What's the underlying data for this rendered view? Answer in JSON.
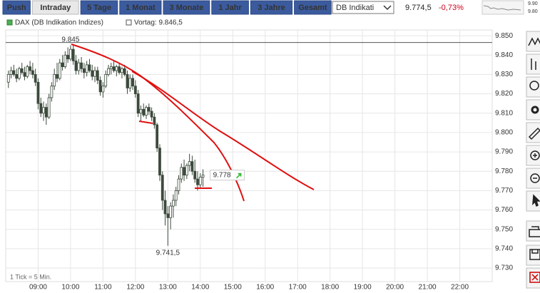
{
  "toolbar": {
    "tabs": [
      "Push",
      "Intraday",
      "5 Tage",
      "1 Monat",
      "3 Monate",
      "1 Jahr",
      "3 Jahre",
      "Gesamt"
    ],
    "active_tab": 1,
    "instrument_select": "DB Indikati",
    "price": "9.774,5",
    "change": "-0,73%",
    "mini_labels": [
      "9.90",
      "9.80"
    ]
  },
  "chart_data": {
    "type": "candlestick",
    "series_name": "DAX (DB Indikation Indizes)",
    "prev_close": {
      "value": 9846.5,
      "label": "Vortag: 9.846,5"
    },
    "high_label": "9.845",
    "low_label": "9.741,5",
    "last_label": "9.778",
    "footnote": "1 Tick = 5 Min.",
    "up_color": "#ffffff",
    "down_color": "#3c4a3c",
    "edge_color": "#3c4a3c",
    "x": [
      485,
      490,
      495,
      500,
      505,
      510,
      515,
      520,
      525,
      530,
      535,
      540,
      545,
      550,
      555,
      560,
      565,
      570,
      575,
      580,
      585,
      590,
      595,
      600,
      605,
      610,
      615,
      620,
      625,
      630,
      635,
      640,
      645,
      650,
      655,
      660,
      665,
      670,
      675,
      680,
      685,
      690,
      695,
      700,
      705,
      710,
      715,
      720,
      725,
      730,
      735,
      740,
      745,
      750,
      755,
      760,
      765,
      770,
      775,
      780,
      785,
      790,
      795,
      800,
      805,
      810,
      815,
      820,
      825,
      830,
      835,
      840,
      845
    ],
    "open": [
      9826,
      9830,
      9832,
      9830,
      9828,
      9833,
      9831,
      9829,
      9834,
      9832,
      9830,
      9826,
      9815,
      9810,
      9813,
      9808,
      9818,
      9824,
      9830,
      9828,
      9836,
      9834,
      9840,
      9838,
      9843,
      9837,
      9832,
      9836,
      9833,
      9831,
      9835,
      9832,
      9829,
      9832,
      9827,
      9821,
      9824,
      9830,
      9833,
      9834,
      9832,
      9834,
      9831,
      9833,
      9830,
      9823,
      9828,
      9824,
      9820,
      9810,
      9812,
      9809,
      9813,
      9811,
      9808,
      9804,
      9792,
      9778,
      9765,
      9758,
      9756,
      9762,
      9765,
      9770,
      9776,
      9782,
      9778,
      9783,
      9785,
      9780,
      9776,
      9773,
      9777
    ],
    "high": [
      9832,
      9834,
      9835,
      9833,
      9834,
      9836,
      9834,
      9835,
      9837,
      9836,
      9833,
      9828,
      9818,
      9816,
      9815,
      9820,
      9826,
      9833,
      9836,
      9838,
      9840,
      9842,
      9844,
      9845,
      9845,
      9840,
      9838,
      9839,
      9836,
      9837,
      9838,
      9835,
      9834,
      9834,
      9829,
      9826,
      9832,
      9835,
      9836,
      9837,
      9835,
      9836,
      9834,
      9835,
      9832,
      9830,
      9830,
      9827,
      9822,
      9814,
      9815,
      9814,
      9815,
      9813,
      9810,
      9805,
      9794,
      9780,
      9770,
      9762,
      9764,
      9768,
      9772,
      9778,
      9784,
      9786,
      9784,
      9789,
      9788,
      9786,
      9780,
      9779,
      9781
    ],
    "low": [
      9823,
      9828,
      9829,
      9826,
      9827,
      9830,
      9827,
      9828,
      9830,
      9828,
      9824,
      9812,
      9808,
      9806,
      9804,
      9807,
      9816,
      9822,
      9826,
      9827,
      9832,
      9833,
      9836,
      9837,
      9835,
      9830,
      9830,
      9831,
      9828,
      9829,
      9831,
      9827,
      9826,
      9825,
      9819,
      9818,
      9823,
      9829,
      9830,
      9831,
      9829,
      9830,
      9828,
      9829,
      9820,
      9821,
      9822,
      9818,
      9808,
      9806,
      9808,
      9807,
      9809,
      9806,
      9802,
      9790,
      9775,
      9760,
      9752,
      9741.5,
      9750,
      9756,
      9762,
      9768,
      9774,
      9775,
      9776,
      9780,
      9778,
      9774,
      9770,
      9771,
      9772
    ],
    "close": [
      9830,
      9832,
      9830,
      9828,
      9833,
      9831,
      9829,
      9834,
      9832,
      9830,
      9826,
      9815,
      9810,
      9813,
      9808,
      9818,
      9824,
      9830,
      9828,
      9836,
      9834,
      9840,
      9838,
      9843,
      9837,
      9832,
      9836,
      9833,
      9831,
      9835,
      9832,
      9829,
      9832,
      9827,
      9821,
      9824,
      9830,
      9833,
      9834,
      9832,
      9834,
      9831,
      9833,
      9830,
      9823,
      9828,
      9824,
      9820,
      9810,
      9812,
      9809,
      9813,
      9811,
      9808,
      9804,
      9792,
      9778,
      9765,
      9758,
      9756,
      9762,
      9765,
      9770,
      9776,
      9782,
      9778,
      9783,
      9785,
      9780,
      9776,
      9773,
      9777,
      9778
    ],
    "xlim": [
      480,
      1380
    ],
    "xticks": [
      {
        "value": 540,
        "label": "09:00"
      },
      {
        "value": 600,
        "label": "10:00"
      },
      {
        "value": 660,
        "label": "11:00"
      },
      {
        "value": 720,
        "label": "12:00"
      },
      {
        "value": 780,
        "label": "13:00"
      },
      {
        "value": 840,
        "label": "14:00"
      },
      {
        "value": 900,
        "label": "15:00"
      },
      {
        "value": 960,
        "label": "16:00"
      },
      {
        "value": 1020,
        "label": "17:00"
      },
      {
        "value": 1080,
        "label": "18:00"
      },
      {
        "value": 1140,
        "label": "19:00"
      },
      {
        "value": 1200,
        "label": "20:00"
      },
      {
        "value": 1260,
        "label": "21:00"
      },
      {
        "value": 1320,
        "label": "22:00"
      }
    ],
    "ylim": [
      9723,
      9853
    ],
    "yticks": [
      {
        "value": 9730,
        "label": "9.730"
      },
      {
        "value": 9740,
        "label": "9.740"
      },
      {
        "value": 9750,
        "label": "9.750"
      },
      {
        "value": 9760,
        "label": "9.760"
      },
      {
        "value": 9770,
        "label": "9.770"
      },
      {
        "value": 9780,
        "label": "9.780"
      },
      {
        "value": 9790,
        "label": "9.790"
      },
      {
        "value": 9800,
        "label": "9.800"
      },
      {
        "value": 9810,
        "label": "9.810"
      },
      {
        "value": 9820,
        "label": "9.820"
      },
      {
        "value": 9830,
        "label": "9.830"
      },
      {
        "value": 9840,
        "label": "9.840"
      },
      {
        "value": 9850,
        "label": "9.850"
      }
    ],
    "grid": true
  }
}
